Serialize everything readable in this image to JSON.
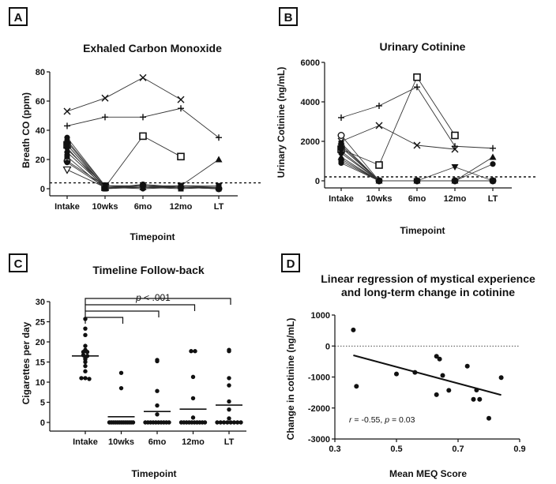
{
  "panels": {
    "A": {
      "label": "A",
      "chart_data": {
        "type": "line",
        "title": "Exhaled Carbon Monoxide",
        "xlabel": "Timepoint",
        "ylabel": "Breath CO (ppm)",
        "categories": [
          "Intake",
          "10wks",
          "6mo",
          "12mo",
          "LT"
        ],
        "ylim": [
          0,
          80
        ],
        "yticks": [
          0,
          20,
          40,
          60,
          80
        ],
        "threshold": 4,
        "series": [
          {
            "name": "x",
            "marker": "x",
            "values": [
              53,
              62,
              76,
              61,
              null
            ]
          },
          {
            "name": "plus",
            "marker": "plus",
            "values": [
              43,
              49,
              49,
              55,
              35
            ]
          },
          {
            "name": "square",
            "marker": "square",
            "values": [
              30,
              1,
              36,
              22,
              null
            ]
          },
          {
            "name": "triangle",
            "marker": "triangle",
            "values": [
              33,
              2,
              1,
              2,
              20
            ]
          },
          {
            "name": "circle",
            "marker": "circle",
            "values": [
              28,
              0,
              3,
              1,
              1
            ]
          },
          {
            "name": "open-triangle-down",
            "marker": "tri-down-open",
            "values": [
              13,
              1,
              null,
              null,
              null
            ]
          },
          {
            "name": "open-circle",
            "marker": "circle-open",
            "values": [
              19,
              2,
              2,
              1,
              0
            ]
          },
          {
            "name": "subject-8",
            "marker": "circle",
            "values": [
              35,
              2,
              2,
              2,
              1
            ]
          },
          {
            "name": "subject-9",
            "marker": "square-filled",
            "values": [
              32,
              1,
              1,
              1,
              0
            ]
          },
          {
            "name": "subject-10",
            "marker": "circle",
            "values": [
              30,
              1,
              2,
              1,
              1
            ]
          },
          {
            "name": "subject-11",
            "marker": "tri-down",
            "values": [
              27,
              2,
              1,
              2,
              2
            ]
          },
          {
            "name": "subject-12",
            "marker": "circle",
            "values": [
              25,
              1,
              1,
              1,
              0
            ]
          },
          {
            "name": "subject-13",
            "marker": "square-filled",
            "values": [
              22,
              0,
              1,
              0,
              1
            ]
          },
          {
            "name": "subject-14",
            "marker": "circle",
            "values": [
              18,
              1,
              0,
              1,
              1
            ]
          }
        ]
      }
    },
    "B": {
      "label": "B",
      "chart_data": {
        "type": "line",
        "title": "Urinary Cotinine",
        "xlabel": "Timepoint",
        "ylabel": "Urinary Cotinine (ng/mL)",
        "categories": [
          "Intake",
          "10wks",
          "6mo",
          "12mo",
          "LT"
        ],
        "ylim": [
          0,
          6000
        ],
        "yticks": [
          0,
          2000,
          4000,
          6000
        ],
        "threshold": 200,
        "series": [
          {
            "name": "plus",
            "marker": "plus",
            "values": [
              3200,
              3800,
              4750,
              1750,
              1650
            ]
          },
          {
            "name": "x",
            "marker": "x",
            "values": [
              2000,
              2800,
              1800,
              1600,
              null
            ]
          },
          {
            "name": "square",
            "marker": "square",
            "values": [
              1600,
              800,
              5250,
              2300,
              null
            ]
          },
          {
            "name": "open-circle",
            "marker": "circle-open",
            "values": [
              2300,
              0,
              0,
              0,
              0
            ]
          },
          {
            "name": "triangle",
            "marker": "triangle",
            "values": [
              1200,
              0,
              0,
              0,
              1200
            ]
          },
          {
            "name": "tri-down",
            "marker": "tri-down",
            "values": [
              1500,
              0,
              0,
              700,
              0
            ]
          },
          {
            "name": "circle",
            "marker": "circle",
            "values": [
              1000,
              0,
              0,
              0,
              850
            ]
          },
          {
            "name": "subject-8",
            "marker": "square-filled",
            "values": [
              1900,
              0,
              0,
              0,
              0
            ]
          },
          {
            "name": "subject-9",
            "marker": "circle",
            "values": [
              1800,
              0,
              0,
              0,
              0
            ]
          },
          {
            "name": "subject-10",
            "marker": "circle",
            "values": [
              1700,
              0,
              0,
              0,
              0
            ]
          },
          {
            "name": "subject-11",
            "marker": "circle",
            "values": [
              1400,
              0,
              0,
              0,
              0
            ]
          },
          {
            "name": "subject-12",
            "marker": "circle",
            "values": [
              1100,
              0,
              0,
              0,
              0
            ]
          },
          {
            "name": "subject-13",
            "marker": "circle",
            "values": [
              900,
              0,
              0,
              0,
              0
            ]
          }
        ]
      }
    },
    "C": {
      "label": "C",
      "chart_data": {
        "type": "scatter",
        "title": "Timeline Follow-back",
        "xlabel": "Timepoint",
        "ylabel": "Cigarettes per day",
        "categories": [
          "Intake",
          "10wks",
          "6mo",
          "12mo",
          "LT"
        ],
        "ylim": [
          0,
          30
        ],
        "yticks": [
          0,
          5,
          10,
          15,
          20,
          25,
          30
        ],
        "annotation": "p < .001",
        "groups": [
          {
            "name": "Intake",
            "median": 16.5,
            "values": [
              25.7,
              23.3,
              21.7,
              19.0,
              18.0,
              17.5,
              17.5,
              16.7,
              16.5,
              16.0,
              15.7,
              15.0,
              14.0,
              12.7,
              11.0,
              11.0,
              10.8
            ]
          },
          {
            "name": "10wks",
            "median": 1.4,
            "values": [
              12.3,
              8.5,
              0,
              0,
              0,
              0,
              0,
              0,
              0,
              0,
              0,
              0,
              0,
              0,
              0
            ]
          },
          {
            "name": "6mo",
            "median": 2.7,
            "values": [
              15.5,
              15.2,
              7.8,
              4.2,
              2.0,
              0,
              0,
              0,
              0,
              0,
              0,
              0,
              0,
              0,
              0
            ]
          },
          {
            "name": "12mo",
            "median": 3.3,
            "values": [
              17.7,
              17.7,
              11.3,
              6.0,
              1.2,
              0,
              0,
              0,
              0,
              0,
              0,
              0,
              0,
              0,
              0
            ]
          },
          {
            "name": "LT",
            "median": 4.3,
            "values": [
              18.0,
              17.7,
              11.0,
              9.2,
              5.2,
              3.2,
              1.0,
              0,
              0,
              0,
              0,
              0,
              0,
              0,
              0
            ]
          }
        ]
      }
    },
    "D": {
      "label": "D",
      "chart_data": {
        "type": "scatter",
        "title": "Linear regression of mystical experience and long-term change in cotinine",
        "title_lines": [
          "Linear regression of mystical experience",
          "and long-term change in cotinine"
        ],
        "xlabel": "Mean MEQ Score",
        "ylabel": "Change in cotinine (ng/mL)",
        "xlim": [
          0.3,
          0.9
        ],
        "ylim": [
          -3000,
          1000
        ],
        "xticks": [
          "0.3",
          "0.5",
          "0.7",
          "0.9"
        ],
        "yticks": [
          "1000",
          "0",
          "-1000",
          "-2000",
          "-3000"
        ],
        "annotation": "r = -0.55, p = 0.03",
        "r_label": "r",
        "r_value": " = -0.55, ",
        "p_label": "p",
        "p_value": " = 0.03",
        "regression": {
          "x": [
            0.36,
            0.84
          ],
          "y": [
            -300,
            -1580
          ]
        },
        "points": {
          "x": [
            0.36,
            0.37,
            0.5,
            0.56,
            0.63,
            0.63,
            0.64,
            0.65,
            0.67,
            0.73,
            0.75,
            0.76,
            0.77,
            0.8,
            0.84
          ],
          "y": [
            520,
            -1300,
            -900,
            -850,
            -1570,
            -330,
            -420,
            -950,
            -1430,
            -650,
            -1720,
            -1420,
            -1720,
            -2330,
            -1020
          ]
        }
      }
    }
  },
  "colors": {
    "ink": "#111111",
    "grid": "#111111"
  }
}
